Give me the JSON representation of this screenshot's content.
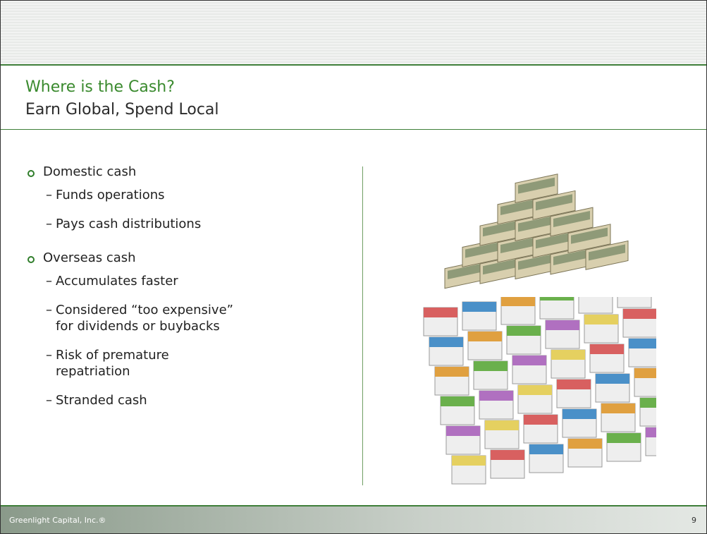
{
  "header": {
    "title": "Where is the Cash?",
    "subtitle": "Earn Global, Spend Local"
  },
  "bullets": [
    {
      "text": "Domestic cash",
      "subs": [
        "Funds operations",
        "Pays cash distributions"
      ]
    },
    {
      "text": "Overseas cash",
      "subs": [
        "Accumulates faster",
        "Considered “too expensive” for dividends or buybacks",
        "Risk of premature repatriation",
        "Stranded cash"
      ]
    }
  ],
  "footer": {
    "company": "Greenlight Capital, Inc.®",
    "page": "9"
  }
}
